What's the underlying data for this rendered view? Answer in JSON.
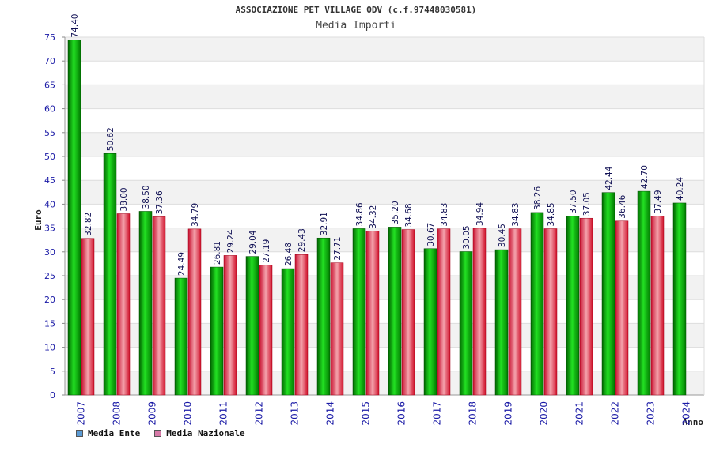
{
  "header": {
    "title": "ASSOCIAZIONE PET VILLAGE ODV (c.f.97448030581)",
    "subtitle": "Media Importi"
  },
  "legend": [
    {
      "label": "Media Ente",
      "color": "#5b9bd5"
    },
    {
      "label": "Media Nazionale",
      "color": "#d77aa8"
    }
  ],
  "chart_data": {
    "type": "bar",
    "title": "ASSOCIAZIONE PET VILLAGE ODV (c.f.97448030581)",
    "subtitle": "Media Importi",
    "xlabel": "Anno",
    "ylabel": "Euro",
    "ylim": [
      0,
      75
    ],
    "yticks": [
      0,
      5,
      10,
      15,
      20,
      25,
      30,
      35,
      40,
      45,
      50,
      55,
      60,
      65,
      70,
      75
    ],
    "grid": true,
    "categories": [
      "2007",
      "2008",
      "2009",
      "2010",
      "2011",
      "2012",
      "2013",
      "2014",
      "2015",
      "2016",
      "2017",
      "2018",
      "2019",
      "2020",
      "2021",
      "2022",
      "2023",
      "2024"
    ],
    "series": [
      {
        "name": "Media Ente",
        "color": "#00b000",
        "values": [
          74.4,
          50.62,
          38.5,
          24.49,
          26.81,
          29.04,
          26.48,
          32.91,
          34.86,
          35.2,
          30.67,
          30.05,
          30.45,
          38.26,
          37.5,
          42.44,
          42.7,
          40.24
        ],
        "labels": [
          "74.40",
          "50.62",
          "38.50",
          "24.49",
          "26.81",
          "29.04",
          "26.48",
          "32.91",
          "34.86",
          "35.20",
          "30.67",
          "30.05",
          "30.45",
          "38.26",
          "37.50",
          "42.44",
          "42.70",
          "40.24"
        ]
      },
      {
        "name": "Media Nazionale",
        "color": "#e0202a",
        "values": [
          32.82,
          38.0,
          37.36,
          34.79,
          29.24,
          27.19,
          29.43,
          27.71,
          34.32,
          34.68,
          34.83,
          34.94,
          34.83,
          34.85,
          37.05,
          36.46,
          37.49,
          null
        ],
        "labels": [
          "32.82",
          "38.00",
          "37.36",
          "34.79",
          "29.24",
          "27.19",
          "29.43",
          "27.71",
          "34.32",
          "34.68",
          "34.83",
          "34.94",
          "34.83",
          "34.85",
          "37.05",
          "36.46",
          "37.49",
          null
        ]
      }
    ]
  }
}
